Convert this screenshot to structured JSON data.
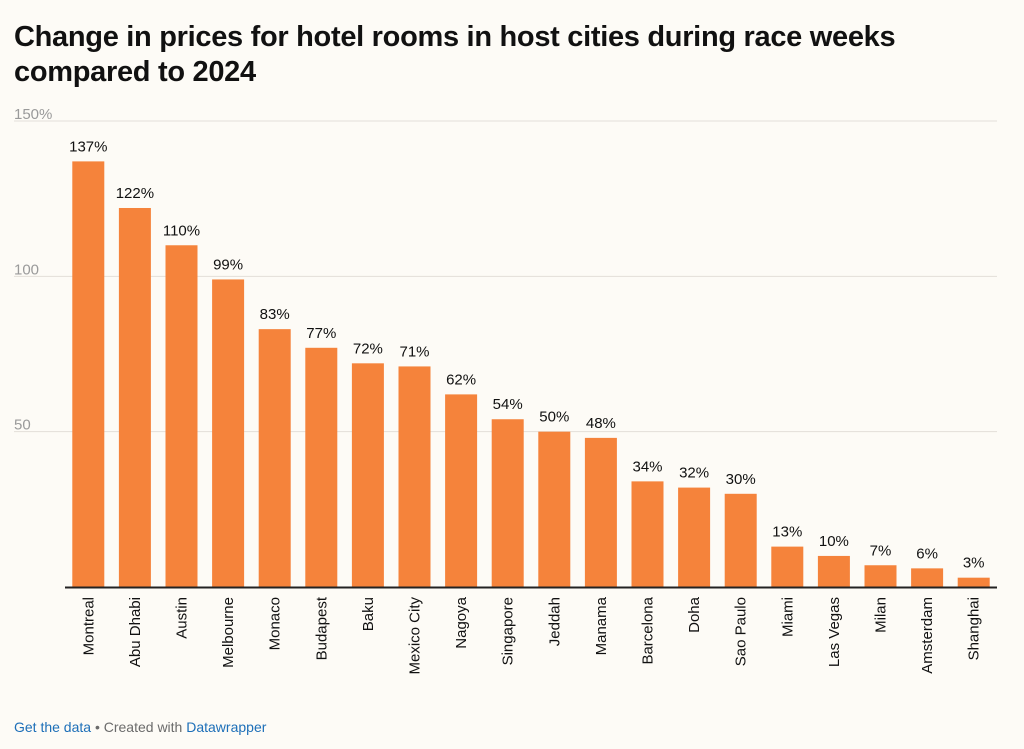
{
  "title": "Change in prices for hotel rooms in host cities during race weeks compared to 2024",
  "footer": {
    "get_data": "Get the data",
    "separator": "•",
    "created_with": "Created with",
    "datawrapper": "Datawrapper"
  },
  "colors": {
    "bar": "#f5833b",
    "gridline": "#e2dfd9",
    "axis": "#222222",
    "tick_text": "#9a9a9a",
    "label_text": "#111111",
    "link": "#1d6fb8"
  },
  "chart_data": {
    "type": "bar",
    "title": "Change in prices for hotel rooms in host cities during race weeks compared to 2024",
    "xlabel": "",
    "ylabel": "",
    "ylim": [
      0,
      150
    ],
    "yticks": [
      {
        "value": 150,
        "label": "150%"
      },
      {
        "value": 100,
        "label": "100"
      },
      {
        "value": 50,
        "label": "50"
      }
    ],
    "grid": true,
    "categories": [
      "Montreal",
      "Abu Dhabi",
      "Austin",
      "Melbourne",
      "Monaco",
      "Budapest",
      "Baku",
      "Mexico City",
      "Nagoya",
      "Singapore",
      "Jeddah",
      "Manama",
      "Barcelona",
      "Doha",
      "Sao Paulo",
      "Miami",
      "Las Vegas",
      "Milan",
      "Amsterdam",
      "Shanghai"
    ],
    "values": [
      137,
      122,
      110,
      99,
      83,
      77,
      72,
      71,
      62,
      54,
      50,
      48,
      34,
      32,
      30,
      13,
      10,
      7,
      6,
      3
    ],
    "value_labels": [
      "137%",
      "122%",
      "110%",
      "99%",
      "83%",
      "77%",
      "72%",
      "71%",
      "62%",
      "54%",
      "50%",
      "48%",
      "34%",
      "32%",
      "30%",
      "13%",
      "10%",
      "7%",
      "6%",
      "3%"
    ]
  }
}
